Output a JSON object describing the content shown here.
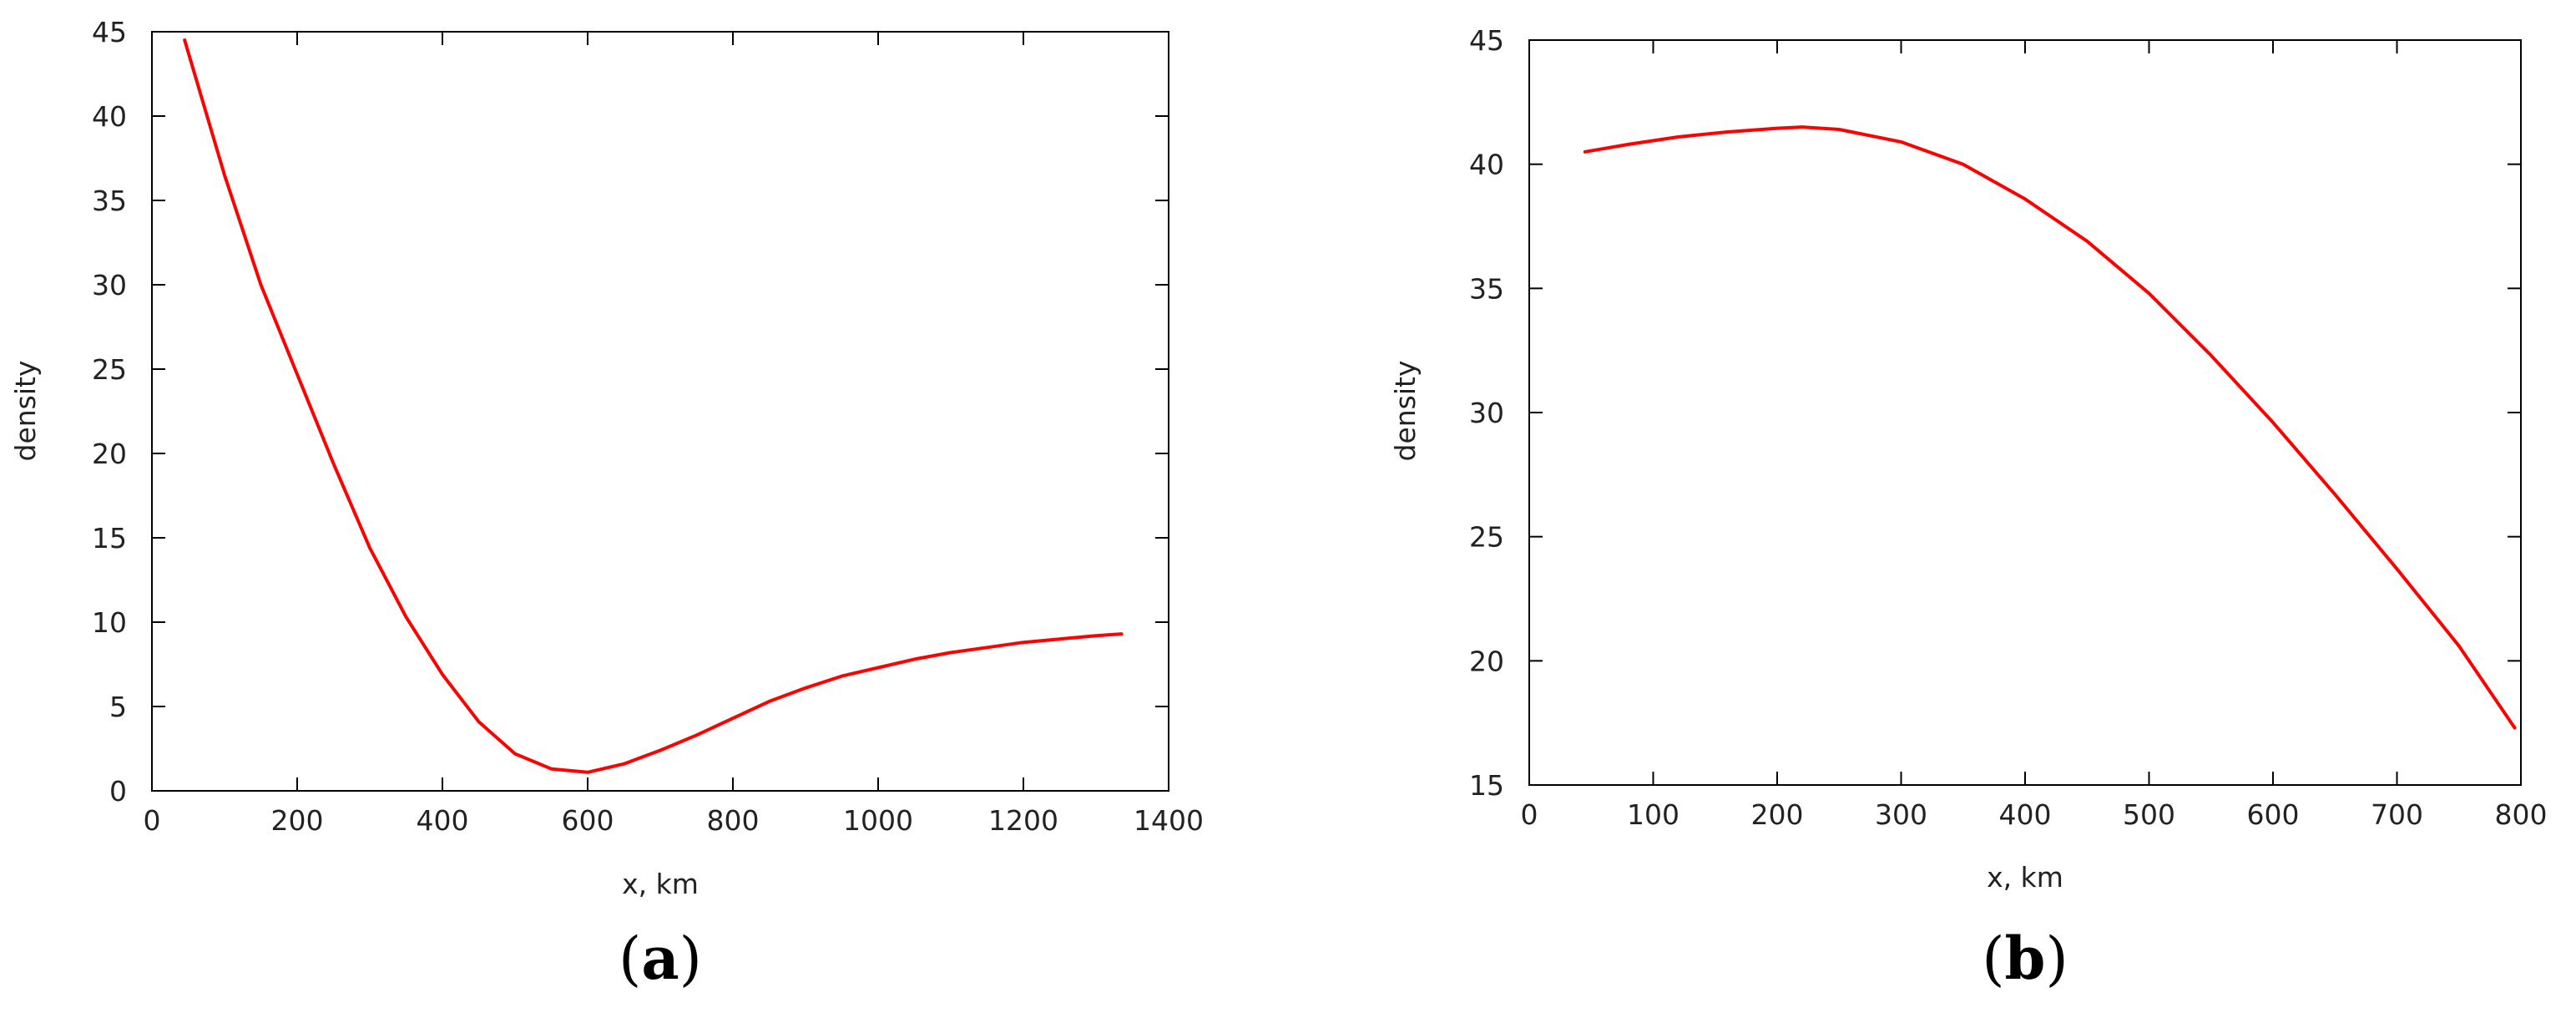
{
  "chart_data": [
    {
      "type": "line",
      "panel_label": "(a)",
      "panel_letter": "a",
      "title": "",
      "xlabel": "x, km",
      "ylabel": "density",
      "xlim": [
        0,
        1400
      ],
      "ylim": [
        0,
        45
      ],
      "xticks": [
        0,
        200,
        400,
        600,
        800,
        1000,
        1200,
        1400
      ],
      "yticks": [
        0,
        5,
        10,
        15,
        20,
        25,
        30,
        35,
        40,
        45
      ],
      "grid": false,
      "legend": "none",
      "series": [
        {
          "color": "#ff0000",
          "x": [
            45,
            100,
            150,
            200,
            250,
            300,
            350,
            400,
            450,
            500,
            550,
            600,
            650,
            700,
            750,
            800,
            850,
            900,
            950,
            1000,
            1050,
            1100,
            1150,
            1200,
            1250,
            1300,
            1335
          ],
          "y": [
            44.5,
            36.5,
            30.0,
            24.7,
            19.4,
            14.4,
            10.3,
            6.9,
            4.1,
            2.2,
            1.3,
            1.1,
            1.6,
            2.4,
            3.3,
            4.3,
            5.3,
            6.1,
            6.8,
            7.3,
            7.8,
            8.2,
            8.5,
            8.8,
            9.0,
            9.2,
            9.3
          ]
        }
      ]
    },
    {
      "type": "line",
      "panel_label": "(b)",
      "panel_letter": "b",
      "title": "",
      "xlabel": "x, km",
      "ylabel": "density",
      "xlim": [
        0,
        800
      ],
      "ylim": [
        15,
        45
      ],
      "xticks": [
        0,
        100,
        200,
        300,
        400,
        500,
        600,
        700,
        800
      ],
      "yticks": [
        15,
        20,
        25,
        30,
        35,
        40,
        45
      ],
      "grid": false,
      "legend": "none",
      "series": [
        {
          "color": "#ff0000",
          "x": [
            45,
            80,
            120,
            160,
            200,
            220,
            250,
            300,
            350,
            400,
            450,
            500,
            550,
            600,
            650,
            700,
            750,
            795
          ],
          "y": [
            40.5,
            40.8,
            41.1,
            41.3,
            41.45,
            41.5,
            41.4,
            40.9,
            40.0,
            38.6,
            36.9,
            34.8,
            32.3,
            29.6,
            26.7,
            23.7,
            20.6,
            17.3
          ]
        }
      ]
    }
  ]
}
